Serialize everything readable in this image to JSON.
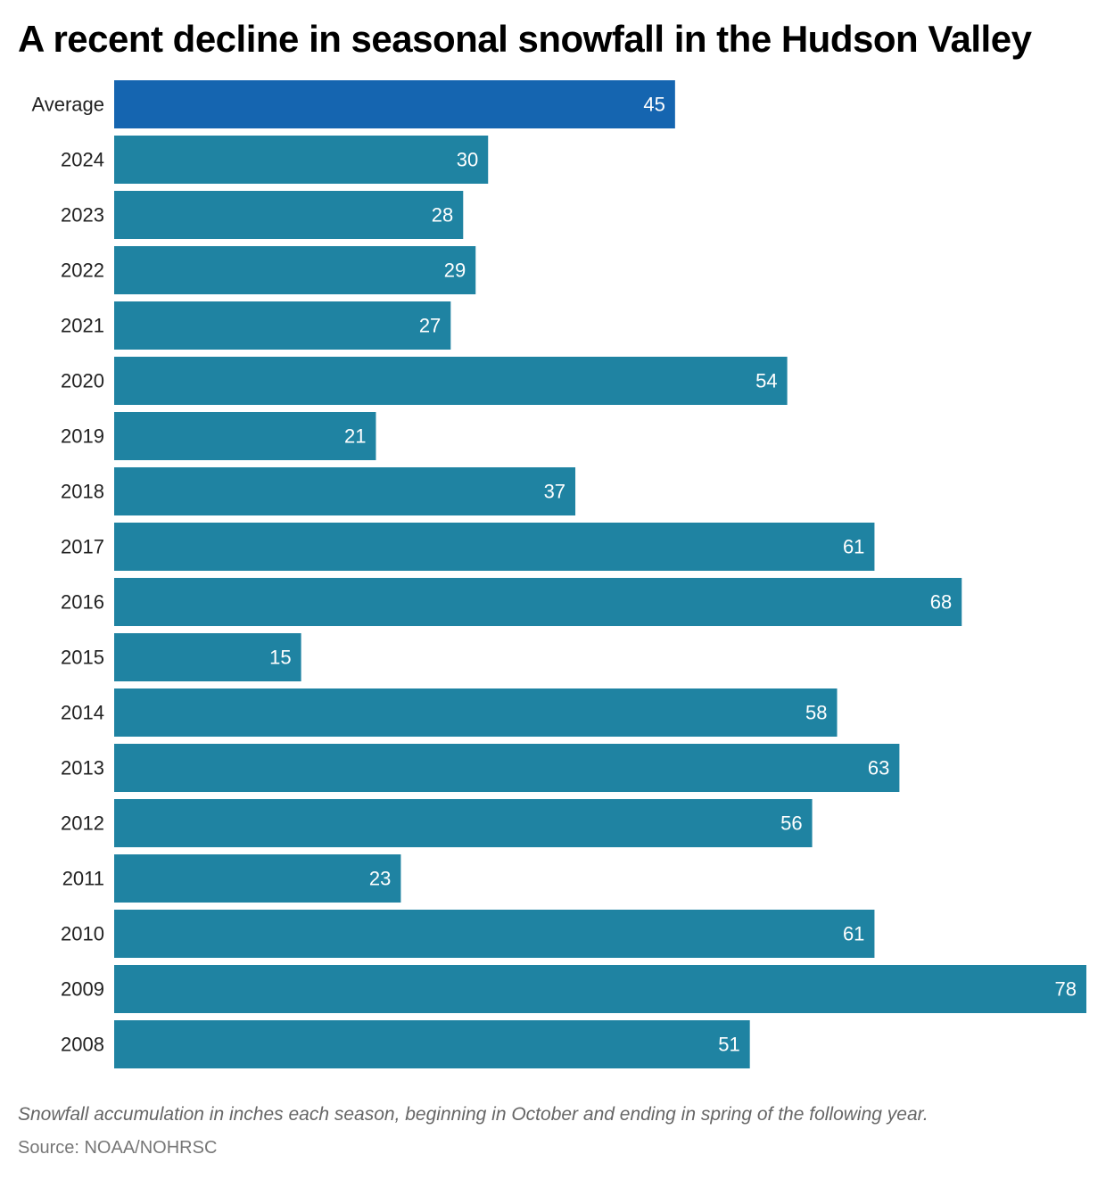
{
  "chart_data": {
    "type": "bar",
    "orientation": "horizontal",
    "title": "A recent decline in seasonal snowfall in the Hudson Valley",
    "categories": [
      "Average",
      "2024",
      "2023",
      "2022",
      "2021",
      "2020",
      "2019",
      "2018",
      "2017",
      "2016",
      "2015",
      "2014",
      "2013",
      "2012",
      "2011",
      "2010",
      "2009",
      "2008"
    ],
    "values": [
      45,
      30,
      28,
      29,
      27,
      54,
      21,
      37,
      61,
      68,
      15,
      58,
      63,
      56,
      23,
      61,
      78,
      51
    ],
    "highlight_category": "Average",
    "colors": {
      "highlight": "#1565B0",
      "bar": "#1F83A2",
      "label_text": "#ffffff"
    },
    "xlim": [
      0,
      78
    ],
    "grid": false,
    "xlabel": "",
    "ylabel": "",
    "footnote": "Snowfall accumulation in inches each season, beginning in October and ending in spring of the following year.",
    "source": "Source: NOAA/NOHRSC"
  }
}
